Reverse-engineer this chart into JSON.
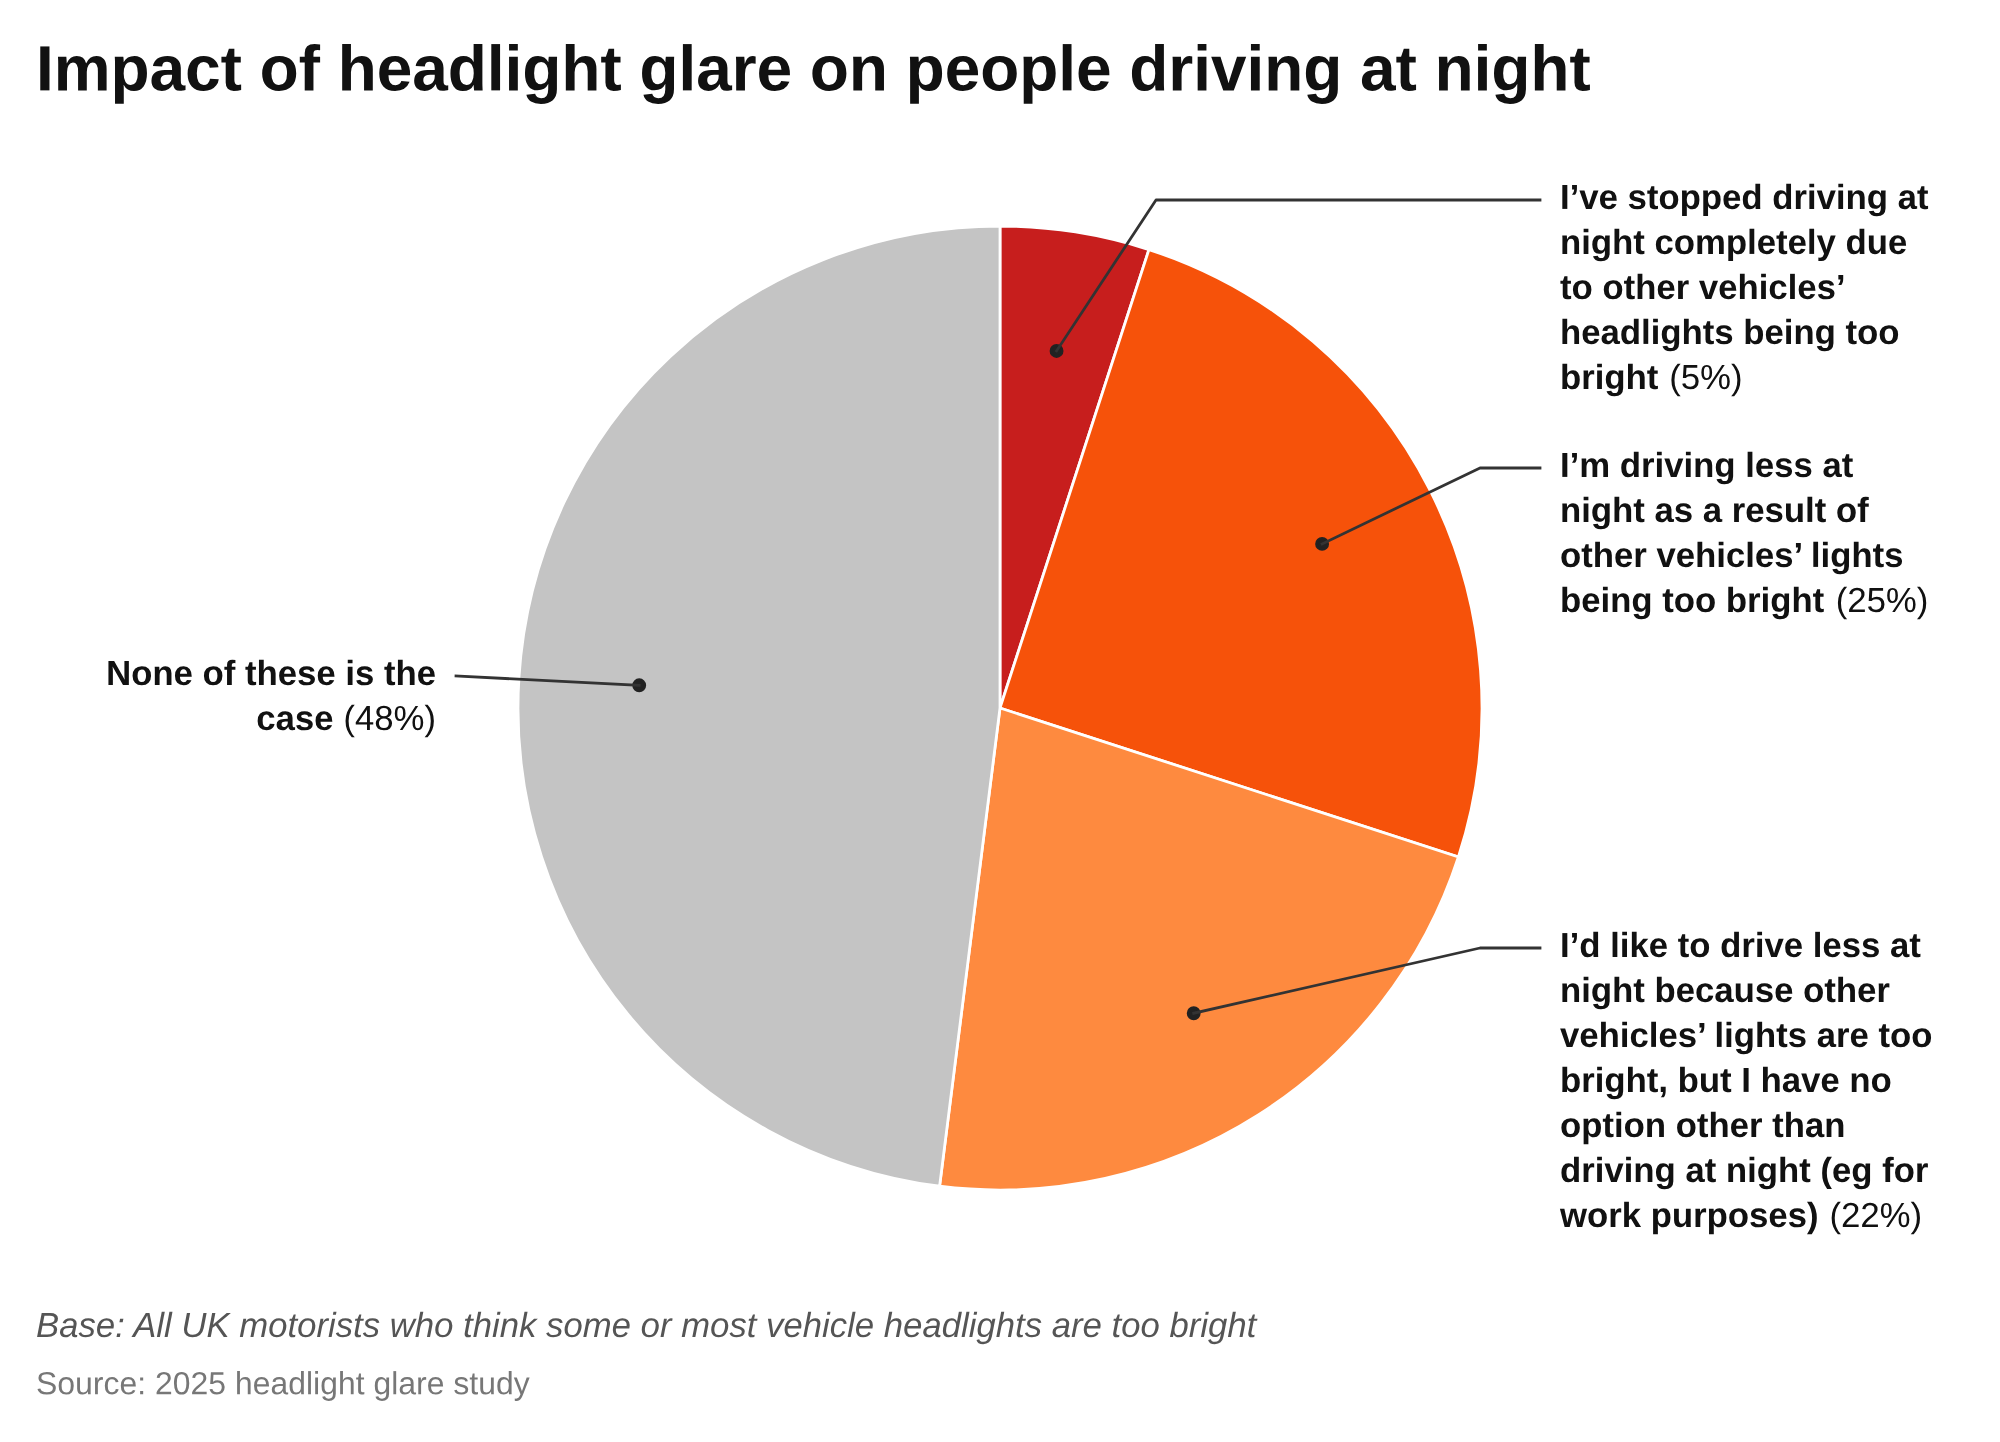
{
  "chart_data": {
    "type": "pie",
    "title": "Impact of headlight glare on people driving at night",
    "categories": [
      "I’ve stopped driving at night completely due to other vehicles’ headlights being too bright",
      "I’m driving less at night as a result of other vehicles’ lights being too bright",
      "I’d like to drive less at night because other vehicles’ lights are too bright, but I have no option other than driving at night (eg for work purposes)",
      "None of these is the case"
    ],
    "values": [
      5,
      25,
      22,
      48
    ],
    "value_labels": [
      "(5%)",
      "(25%)",
      "(22%)",
      "(48%)"
    ],
    "colors": [
      "#c71e1d",
      "#f6520a",
      "#fe8a3f",
      "#c4c4c4"
    ],
    "legend": false,
    "annotations": [
      "Base: All UK motorists who think some or most vehicle headlights are too bright",
      "Source: 2025 headlight glare study"
    ]
  }
}
